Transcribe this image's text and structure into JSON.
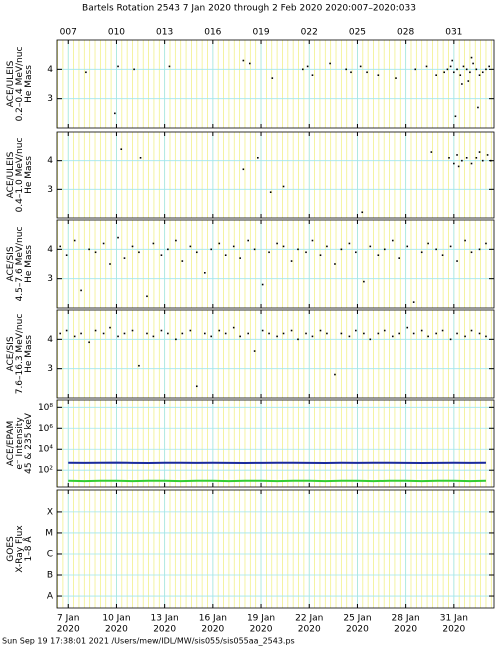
{
  "title": "Bartels Rotation 2543    7 Jan 2020 through 2 Feb 2020    2020:007–2020:033",
  "footer": "Sun Sep 19 17:38:01 2021    /Users/mew/IDL/MW/sis055/sis055aa_2543.ps",
  "chart_data": [
    {
      "type": "scatter",
      "ylabel": [
        "ACE/ULEIS",
        "0.2–0.4 MeV/nuc",
        "He Mass"
      ],
      "xlim": [
        6.3,
        33.5
      ],
      "ylim": [
        2,
        5
      ],
      "yticks": [
        3,
        4
      ],
      "grid": true,
      "xticks_top": [
        {
          "value": 7,
          "label": "007"
        },
        {
          "value": 10,
          "label": "010"
        },
        {
          "value": 13,
          "label": "013"
        },
        {
          "value": 16,
          "label": "016"
        },
        {
          "value": 19,
          "label": "019"
        },
        {
          "value": 22,
          "label": "022"
        },
        {
          "value": 25,
          "label": "025"
        },
        {
          "value": 28,
          "label": "028"
        },
        {
          "value": 31,
          "label": "031"
        }
      ],
      "series": [
        {
          "color": "#000000",
          "x": [
            8.1,
            9.9,
            10.1,
            11.1,
            13.3,
            17.9,
            18.3,
            19.7,
            21.6,
            21.9,
            22.2,
            23.3,
            24.3,
            24.6,
            25.2,
            25.6,
            26.3,
            27.4,
            28.6,
            29.3,
            29.9,
            30.4,
            30.6,
            30.8,
            31.0,
            31.2,
            31.4,
            31.6,
            31.8,
            32.0,
            32.2,
            32.4,
            32.6,
            32.8,
            33.0,
            33.2,
            31.5,
            32.1,
            30.9,
            31.9,
            32.5,
            31.1
          ],
          "values": [
            3.9,
            2.5,
            4.1,
            4.0,
            4.1,
            4.3,
            4.2,
            3.7,
            4.0,
            4.1,
            3.8,
            4.2,
            4.0,
            3.9,
            4.1,
            3.9,
            3.8,
            3.7,
            4.0,
            4.1,
            3.8,
            3.9,
            4.0,
            4.1,
            3.9,
            4.0,
            3.8,
            4.1,
            4.0,
            3.9,
            4.2,
            4.0,
            3.8,
            3.9,
            4.0,
            4.1,
            3.5,
            4.4,
            4.3,
            3.6,
            2.7,
            2.4
          ]
        }
      ]
    },
    {
      "type": "scatter",
      "ylabel": [
        "ACE/ULEIS",
        "0.4–1.0 MeV/nuc",
        "He Mass"
      ],
      "xlim": [
        6.3,
        33.5
      ],
      "ylim": [
        2,
        5
      ],
      "yticks": [
        3,
        4
      ],
      "grid": true,
      "series": [
        {
          "color": "#000000",
          "x": [
            10.3,
            11.5,
            17.9,
            18.8,
            19.6,
            20.4,
            25.3,
            29.6,
            30.7,
            31.0,
            31.2,
            31.5,
            31.8,
            32.1,
            32.4,
            32.8,
            33.1,
            31.3,
            32.6,
            33.3
          ],
          "values": [
            4.4,
            4.1,
            3.7,
            4.1,
            2.9,
            3.1,
            2.2,
            4.3,
            4.1,
            3.9,
            4.2,
            4.0,
            4.1,
            3.9,
            4.1,
            4.0,
            4.2,
            3.8,
            4.3,
            4.0
          ]
        }
      ]
    },
    {
      "type": "scatter",
      "ylabel": [
        "ACE/SIS",
        "4.5–7.6 MeV/nuc",
        "He Mass"
      ],
      "xlim": [
        6.3,
        33.5
      ],
      "ylim": [
        2,
        5
      ],
      "yticks": [
        3,
        4
      ],
      "grid": true,
      "series": [
        {
          "color": "#000000",
          "x": [
            6.5,
            6.9,
            7.4,
            7.8,
            8.3,
            8.7,
            9.2,
            9.6,
            10.1,
            10.5,
            11.0,
            11.4,
            11.9,
            12.3,
            12.8,
            13.2,
            13.7,
            14.1,
            14.6,
            15.0,
            15.5,
            15.9,
            16.4,
            16.8,
            17.3,
            17.7,
            18.2,
            18.6,
            19.1,
            19.5,
            20.0,
            20.4,
            20.9,
            21.3,
            21.8,
            22.2,
            22.7,
            23.1,
            23.6,
            24.0,
            24.5,
            24.9,
            25.4,
            25.8,
            26.3,
            26.7,
            27.2,
            27.6,
            28.1,
            28.5,
            29.0,
            29.4,
            29.9,
            30.3,
            30.8,
            31.2,
            31.7,
            32.1,
            32.6,
            33.0
          ],
          "values": [
            4.1,
            3.8,
            4.3,
            2.6,
            4.0,
            3.9,
            4.2,
            3.5,
            4.4,
            3.7,
            4.1,
            3.9,
            2.4,
            4.2,
            3.8,
            4.0,
            4.3,
            3.6,
            4.1,
            3.9,
            3.2,
            4.0,
            4.2,
            3.8,
            4.1,
            3.7,
            4.3,
            4.0,
            2.8,
            3.9,
            4.2,
            4.1,
            3.6,
            4.0,
            3.9,
            4.3,
            3.8,
            4.1,
            3.5,
            4.0,
            4.2,
            3.9,
            2.9,
            4.1,
            3.8,
            4.0,
            4.3,
            3.7,
            4.1,
            2.2,
            3.9,
            4.2,
            4.0,
            3.8,
            4.1,
            3.6,
            4.3,
            3.9,
            4.0,
            4.2
          ]
        }
      ]
    },
    {
      "type": "scatter",
      "ylabel": [
        "ACE/SIS",
        "7.6–16.3 MeV/nuc",
        "He Mass"
      ],
      "xlim": [
        6.3,
        33.5
      ],
      "ylim": [
        2,
        5
      ],
      "yticks": [
        3,
        4
      ],
      "grid": true,
      "series": [
        {
          "color": "#000000",
          "x": [
            6.5,
            6.9,
            7.4,
            7.8,
            8.3,
            8.7,
            9.2,
            9.6,
            10.1,
            10.5,
            11.0,
            11.4,
            11.9,
            12.3,
            12.8,
            13.2,
            13.7,
            14.1,
            14.6,
            15.0,
            15.5,
            15.9,
            16.4,
            16.8,
            17.3,
            17.7,
            18.2,
            18.6,
            19.1,
            19.5,
            20.0,
            20.4,
            20.9,
            21.3,
            21.8,
            22.2,
            22.7,
            23.1,
            23.6,
            24.0,
            24.5,
            24.9,
            25.4,
            25.8,
            26.3,
            26.7,
            27.2,
            27.6,
            28.1,
            28.5,
            29.0,
            29.4,
            29.9,
            30.3,
            30.8,
            31.2,
            31.7,
            32.1,
            32.6,
            33.0
          ],
          "values": [
            4.2,
            4.3,
            4.1,
            4.2,
            3.9,
            4.3,
            4.2,
            4.4,
            4.1,
            4.2,
            4.3,
            3.1,
            4.2,
            4.1,
            4.3,
            4.2,
            4.0,
            4.2,
            4.3,
            2.4,
            4.2,
            4.1,
            4.3,
            4.2,
            4.4,
            4.1,
            4.2,
            3.6,
            4.3,
            4.2,
            4.1,
            4.2,
            4.3,
            4.0,
            4.2,
            4.1,
            4.3,
            4.2,
            2.8,
            4.2,
            4.1,
            4.3,
            4.2,
            4.0,
            4.2,
            4.3,
            4.1,
            4.2,
            4.4,
            4.2,
            4.3,
            4.1,
            4.2,
            4.3,
            4.0,
            4.2,
            4.1,
            4.3,
            4.2,
            4.1
          ]
        }
      ]
    },
    {
      "type": "line",
      "ylabel": [
        "ACE/EPAM",
        "e⁻ Intensity",
        "45 & 235 keV"
      ],
      "xlim": [
        6.3,
        33.5
      ],
      "ylim": [
        2.5,
        500000000
      ],
      "log_scale": true,
      "grid": true,
      "yticks": [
        {
          "value": 100,
          "label": "10²"
        },
        {
          "value": 10000,
          "label": "10⁴"
        },
        {
          "value": 1000000,
          "label": "10⁶"
        },
        {
          "value": 100000000,
          "label": "10⁸"
        }
      ],
      "series": [
        {
          "color": "#1a2a9c",
          "x": [
            7,
            8,
            9,
            10,
            11,
            12,
            13,
            14,
            15,
            16,
            17,
            18,
            19,
            20,
            21,
            22,
            23,
            24,
            25,
            26,
            27,
            28,
            29,
            30,
            31,
            32,
            33
          ],
          "values": [
            520,
            500,
            510,
            530,
            500,
            490,
            510,
            520,
            500,
            510,
            500,
            490,
            500,
            520,
            510,
            500,
            490,
            510,
            500,
            520,
            510,
            500,
            490,
            500,
            510,
            500,
            510
          ]
        },
        {
          "color": "#33cc33",
          "x": [
            7,
            8,
            9,
            10,
            11,
            12,
            13,
            14,
            15,
            16,
            17,
            18,
            19,
            20,
            21,
            22,
            23,
            24,
            25,
            26,
            27,
            28,
            29,
            30,
            31,
            32,
            33
          ],
          "values": [
            10,
            9,
            10,
            10,
            9,
            10,
            10,
            9,
            10,
            10,
            9,
            10,
            10,
            9,
            10,
            10,
            9,
            10,
            10,
            9,
            10,
            10,
            9,
            10,
            10,
            9,
            10
          ]
        }
      ]
    },
    {
      "type": "line",
      "ylabel": [
        "GOES",
        "X-Ray Flux",
        "1–8 Å"
      ],
      "xlim": [
        6.3,
        33.5
      ],
      "ylim": [
        2.7e-09,
        0.0011
      ],
      "log_scale": true,
      "grid": true,
      "yticks": [
        {
          "value": 0.0001,
          "label": "X"
        },
        {
          "value": 1e-05,
          "label": "M"
        },
        {
          "value": 1e-06,
          "label": "C"
        },
        {
          "value": 1e-07,
          "label": "B"
        },
        {
          "value": 1e-08,
          "label": "A"
        }
      ],
      "xticks": [
        {
          "value": 7,
          "label": [
            "7 Jan",
            "2020"
          ]
        },
        {
          "value": 10,
          "label": [
            "10 Jan",
            "2020"
          ]
        },
        {
          "value": 13,
          "label": [
            "13 Jan",
            "2020"
          ]
        },
        {
          "value": 16,
          "label": [
            "16 Jan",
            "2020"
          ]
        },
        {
          "value": 19,
          "label": [
            "19 Jan",
            "2020"
          ]
        },
        {
          "value": 22,
          "label": [
            "22 Jan",
            "2020"
          ]
        },
        {
          "value": 25,
          "label": [
            "25 Jan",
            "2020"
          ]
        },
        {
          "value": 28,
          "label": [
            "28 Jan",
            "2020"
          ]
        },
        {
          "value": 31,
          "label": [
            "31 Jan",
            "2020"
          ]
        }
      ],
      "series": []
    }
  ]
}
